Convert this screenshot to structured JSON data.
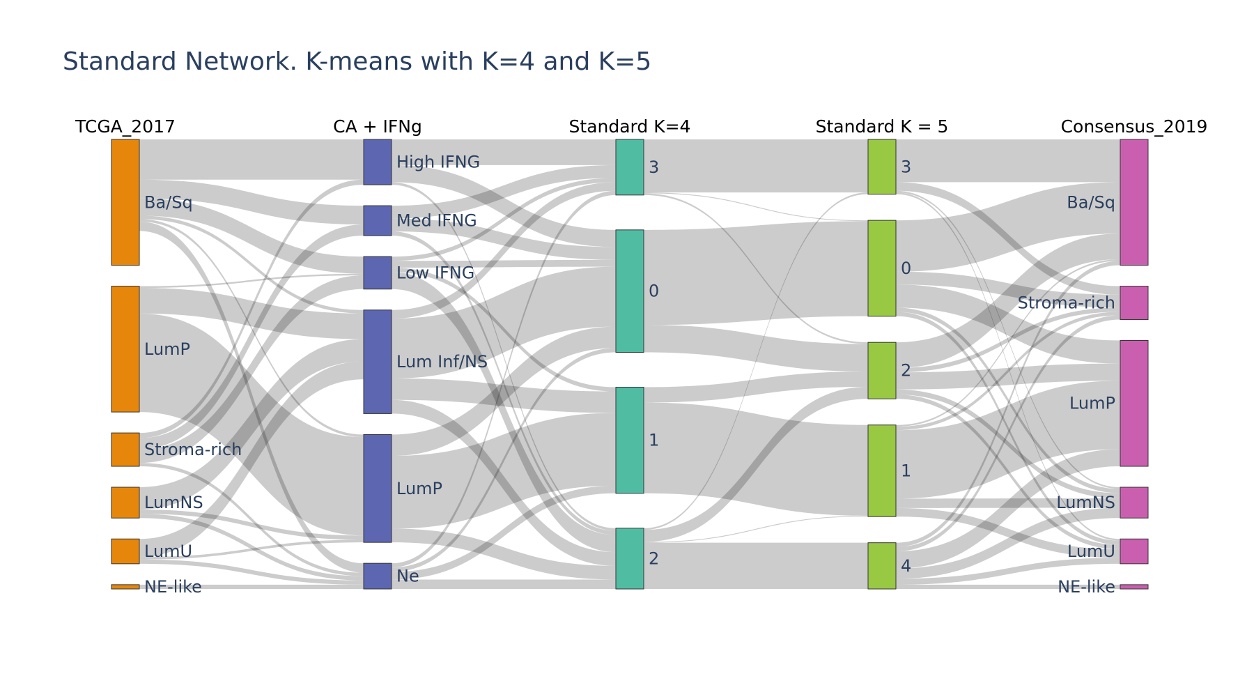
{
  "title": "Standard Network. K-means with K=4 and K=5",
  "chart_data": {
    "type": "sankey",
    "stages": [
      {
        "label": "TCGA_2017",
        "color": "#e6870b",
        "label_side": "right",
        "nodes": [
          {
            "id": "t_basq",
            "label": "Ba/Sq",
            "value": 147
          },
          {
            "id": "t_lump",
            "label": "LumP",
            "value": 147
          },
          {
            "id": "t_stroma",
            "label": "Stroma-rich",
            "value": 39
          },
          {
            "id": "t_lumns",
            "label": "LumNS",
            "value": 36
          },
          {
            "id": "t_lumu",
            "label": "LumU",
            "value": 29
          },
          {
            "id": "t_ne",
            "label": "NE-like",
            "value": 5
          }
        ]
      },
      {
        "label": "CA + IFNg",
        "color": "#5c66b1",
        "label_side": "right",
        "nodes": [
          {
            "id": "c_high",
            "label": "High IFNG",
            "value": 53
          },
          {
            "id": "c_med",
            "label": "Med IFNG",
            "value": 35
          },
          {
            "id": "c_low",
            "label": "Low IFNG",
            "value": 38
          },
          {
            "id": "c_luminf",
            "label": "Lum Inf/NS",
            "value": 121
          },
          {
            "id": "c_lump",
            "label": "LumP",
            "value": 126
          },
          {
            "id": "c_ne",
            "label": "Ne",
            "value": 30
          }
        ]
      },
      {
        "label": "Standard K=4",
        "color": "#50bda3",
        "label_side": "right",
        "nodes": [
          {
            "id": "k4_3",
            "label": "3",
            "value": 65
          },
          {
            "id": "k4_0",
            "label": "0",
            "value": 143
          },
          {
            "id": "k4_1",
            "label": "1",
            "value": 124
          },
          {
            "id": "k4_2",
            "label": "2",
            "value": 71
          }
        ]
      },
      {
        "label": "Standard K = 5",
        "color": "#99c843",
        "label_side": "right",
        "nodes": [
          {
            "id": "k5_3",
            "label": "3",
            "value": 64
          },
          {
            "id": "k5_0",
            "label": "0",
            "value": 112
          },
          {
            "id": "k5_2",
            "label": "2",
            "value": 66
          },
          {
            "id": "k5_1",
            "label": "1",
            "value": 107
          },
          {
            "id": "k5_4",
            "label": "4",
            "value": 54
          }
        ]
      },
      {
        "label": "Consensus_2019",
        "color": "#ca5fb0",
        "label_side": "left",
        "nodes": [
          {
            "id": "s_basq",
            "label": "Ba/Sq",
            "value": 147
          },
          {
            "id": "s_stroma",
            "label": "Stroma-rich",
            "value": 39
          },
          {
            "id": "s_lump",
            "label": "LumP",
            "value": 147
          },
          {
            "id": "s_lumns",
            "label": "LumNS",
            "value": 36
          },
          {
            "id": "s_lumu",
            "label": "LumU",
            "value": 29
          },
          {
            "id": "s_ne",
            "label": "NE-like",
            "value": 5
          }
        ]
      }
    ],
    "links": [
      {
        "source": "t_basq",
        "target": "c_high",
        "value": 47
      },
      {
        "source": "t_basq",
        "target": "c_med",
        "value": 22
      },
      {
        "source": "t_basq",
        "target": "c_low",
        "value": 20
      },
      {
        "source": "t_basq",
        "target": "c_luminf",
        "value": 4
      },
      {
        "source": "t_basq",
        "target": "c_lump",
        "value": 3
      },
      {
        "source": "t_basq",
        "target": "c_ne",
        "value": 1
      },
      {
        "source": "t_basq",
        "target": "c_ne",
        "value": 10
      },
      {
        "source": "t_lump",
        "target": "c_low",
        "value": 2
      },
      {
        "source": "t_lump",
        "target": "c_luminf",
        "value": 30
      },
      {
        "source": "t_lump",
        "target": "c_lump",
        "value": 115
      },
      {
        "source": "t_stroma",
        "target": "c_high",
        "value": 6
      },
      {
        "source": "t_stroma",
        "target": "c_med",
        "value": 13
      },
      {
        "source": "t_stroma",
        "target": "c_low",
        "value": 16
      },
      {
        "source": "t_stroma",
        "target": "c_ne",
        "value": 4
      },
      {
        "source": "t_lumns",
        "target": "c_luminf",
        "value": 26
      },
      {
        "source": "t_lumns",
        "target": "c_lump",
        "value": 5
      },
      {
        "source": "t_lumns",
        "target": "c_ne",
        "value": 5
      },
      {
        "source": "t_lumu",
        "target": "c_luminf",
        "value": 21
      },
      {
        "source": "t_lumu",
        "target": "c_lump",
        "value": 3
      },
      {
        "source": "t_lumu",
        "target": "c_ne",
        "value": 5
      },
      {
        "source": "t_ne",
        "target": "c_ne",
        "value": 5
      },
      {
        "source": "c_high",
        "target": "k4_3",
        "value": 30
      },
      {
        "source": "c_high",
        "target": "k4_0",
        "value": 20
      },
      {
        "source": "c_high",
        "target": "k4_2",
        "value": 3
      },
      {
        "source": "c_med",
        "target": "k4_3",
        "value": 15
      },
      {
        "source": "c_med",
        "target": "k4_0",
        "value": 15
      },
      {
        "source": "c_med",
        "target": "k4_2",
        "value": 5
      },
      {
        "source": "c_low",
        "target": "k4_3",
        "value": 5
      },
      {
        "source": "c_low",
        "target": "k4_0",
        "value": 8
      },
      {
        "source": "c_low",
        "target": "k4_1",
        "value": 5
      },
      {
        "source": "c_low",
        "target": "k4_2",
        "value": 20
      },
      {
        "source": "c_luminf",
        "target": "k4_3",
        "value": 10
      },
      {
        "source": "c_luminf",
        "target": "k4_0",
        "value": 70
      },
      {
        "source": "c_luminf",
        "target": "k4_1",
        "value": 25
      },
      {
        "source": "c_luminf",
        "target": "k4_2",
        "value": 16
      },
      {
        "source": "c_lump",
        "target": "k4_0",
        "value": 25
      },
      {
        "source": "c_lump",
        "target": "k4_1",
        "value": 85
      },
      {
        "source": "c_lump",
        "target": "k4_2",
        "value": 16
      },
      {
        "source": "c_ne",
        "target": "k4_3",
        "value": 5
      },
      {
        "source": "c_ne",
        "target": "k4_0",
        "value": 5
      },
      {
        "source": "c_ne",
        "target": "k4_1",
        "value": 9
      },
      {
        "source": "c_ne",
        "target": "k4_2",
        "value": 11
      },
      {
        "source": "k4_3",
        "target": "k5_3",
        "value": 62
      },
      {
        "source": "k4_3",
        "target": "k5_0",
        "value": 1
      },
      {
        "source": "k4_3",
        "target": "k5_2",
        "value": 2
      },
      {
        "source": "k4_0",
        "target": "k5_0",
        "value": 111
      },
      {
        "source": "k4_0",
        "target": "k5_2",
        "value": 32
      },
      {
        "source": "k4_1",
        "target": "k5_2",
        "value": 18
      },
      {
        "source": "k4_1",
        "target": "k5_1",
        "value": 106
      },
      {
        "source": "k4_2",
        "target": "k5_3",
        "value": 2
      },
      {
        "source": "k4_2",
        "target": "k5_2",
        "value": 14
      },
      {
        "source": "k4_2",
        "target": "k5_1",
        "value": 1
      },
      {
        "source": "k4_2",
        "target": "k5_4",
        "value": 54
      },
      {
        "source": "k5_3",
        "target": "s_basq",
        "value": 50
      },
      {
        "source": "k5_3",
        "target": "s_stroma",
        "value": 10
      },
      {
        "source": "k5_3",
        "target": "s_lumns",
        "value": 2
      },
      {
        "source": "k5_3",
        "target": "s_lumu",
        "value": 2
      },
      {
        "source": "k5_0",
        "target": "s_basq",
        "value": 60
      },
      {
        "source": "k5_0",
        "target": "s_stroma",
        "value": 15
      },
      {
        "source": "k5_0",
        "target": "s_lump",
        "value": 27
      },
      {
        "source": "k5_0",
        "target": "s_lumns",
        "value": 5
      },
      {
        "source": "k5_0",
        "target": "s_lumu",
        "value": 5
      },
      {
        "source": "k5_2",
        "target": "s_basq",
        "value": 30
      },
      {
        "source": "k5_2",
        "target": "s_stroma",
        "value": 5
      },
      {
        "source": "k5_2",
        "target": "s_lump",
        "value": 20
      },
      {
        "source": "k5_2",
        "target": "s_lumns",
        "value": 6
      },
      {
        "source": "k5_2",
        "target": "s_lumu",
        "value": 5
      },
      {
        "source": "k5_1",
        "target": "s_basq",
        "value": 2
      },
      {
        "source": "k5_1",
        "target": "s_stroma",
        "value": 4
      },
      {
        "source": "k5_1",
        "target": "s_lump",
        "value": 80
      },
      {
        "source": "k5_1",
        "target": "s_lumns",
        "value": 11
      },
      {
        "source": "k5_1",
        "target": "s_lumu",
        "value": 10
      },
      {
        "source": "k5_4",
        "target": "s_basq",
        "value": 5
      },
      {
        "source": "k5_4",
        "target": "s_stroma",
        "value": 5
      },
      {
        "source": "k5_4",
        "target": "s_lump",
        "value": 20
      },
      {
        "source": "k5_4",
        "target": "s_lumns",
        "value": 12
      },
      {
        "source": "k5_4",
        "target": "s_lumu",
        "value": 7
      },
      {
        "source": "k5_4",
        "target": "s_ne",
        "value": 5
      }
    ]
  }
}
